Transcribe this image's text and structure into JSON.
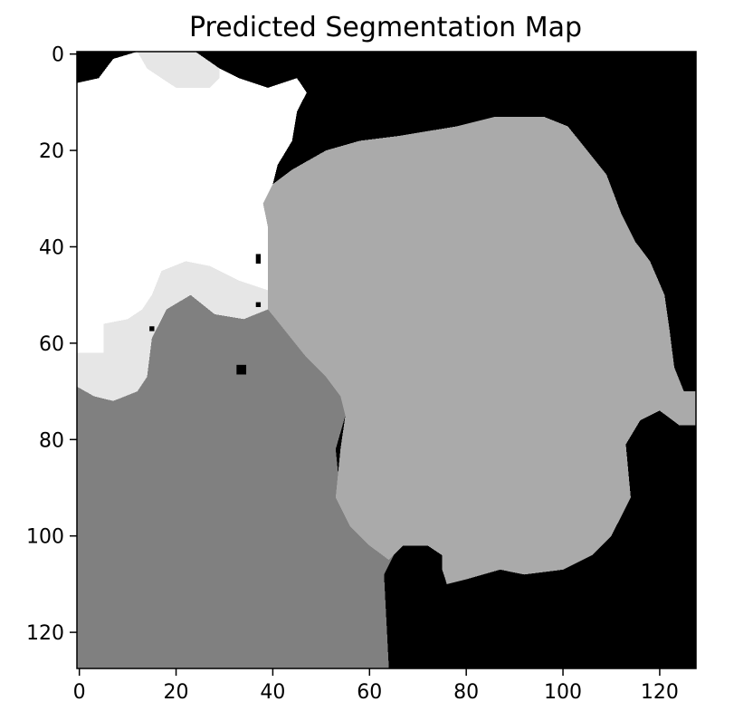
{
  "chart_data": {
    "type": "heatmap",
    "title": "Predicted Segmentation Map",
    "xlabel": "",
    "ylabel": "",
    "image_size": [
      128,
      128
    ],
    "xlim": [
      0,
      127
    ],
    "ylim": [
      127,
      0
    ],
    "x_ticks": [
      0,
      20,
      40,
      60,
      80,
      100,
      120
    ],
    "y_ticks": [
      0,
      20,
      40,
      60,
      80,
      100,
      120
    ],
    "colormap": "gray",
    "classes": [
      {
        "value": 0,
        "color": "#000000"
      },
      {
        "value": 1,
        "color": "#808080"
      },
      {
        "value": 2,
        "color": "#aaaaaa"
      },
      {
        "value": 3,
        "color": "#e6e6e6"
      },
      {
        "value": 4,
        "color": "#ffffff"
      }
    ],
    "regions": [
      {
        "class": 3,
        "polygon": [
          [
            12,
            0
          ],
          [
            24,
            0
          ],
          [
            29,
            3
          ],
          [
            29,
            5
          ],
          [
            27,
            7
          ],
          [
            20,
            7
          ],
          [
            17,
            5
          ],
          [
            14,
            3
          ],
          [
            12,
            0
          ],
          [
            17,
            45
          ],
          [
            22,
            43
          ],
          [
            27,
            44
          ],
          [
            33,
            47
          ],
          [
            39,
            49
          ],
          [
            39,
            53
          ],
          [
            34,
            55
          ],
          [
            28,
            54
          ],
          [
            23,
            50
          ],
          [
            18,
            53
          ],
          [
            15,
            59
          ],
          [
            14,
            67
          ],
          [
            12,
            70
          ],
          [
            7,
            72
          ],
          [
            3,
            71
          ],
          [
            0,
            69
          ],
          [
            0,
            62
          ],
          [
            5,
            62
          ],
          [
            5,
            56
          ],
          [
            10,
            55
          ],
          [
            13,
            53
          ],
          [
            15,
            50
          ]
        ]
      },
      {
        "class": 4,
        "polygon": [
          [
            0,
            6
          ],
          [
            4,
            5
          ],
          [
            7,
            1
          ],
          [
            12,
            0
          ],
          [
            14,
            3
          ],
          [
            17,
            5
          ],
          [
            20,
            7
          ],
          [
            27,
            7
          ],
          [
            29,
            5
          ],
          [
            29,
            3
          ],
          [
            33,
            5
          ],
          [
            39,
            7
          ],
          [
            45,
            5
          ],
          [
            47,
            8
          ],
          [
            45,
            12
          ],
          [
            44,
            18
          ],
          [
            41,
            23
          ],
          [
            40,
            27
          ],
          [
            38,
            31
          ],
          [
            39,
            36
          ],
          [
            39,
            42
          ],
          [
            39,
            46
          ],
          [
            39,
            49
          ],
          [
            33,
            47
          ],
          [
            27,
            44
          ],
          [
            22,
            43
          ],
          [
            17,
            45
          ],
          [
            15,
            50
          ],
          [
            13,
            53
          ],
          [
            10,
            55
          ],
          [
            5,
            56
          ],
          [
            5,
            62
          ],
          [
            0,
            62
          ]
        ]
      },
      {
        "class": 1,
        "polygon": [
          [
            0,
            69
          ],
          [
            3,
            71
          ],
          [
            7,
            72
          ],
          [
            12,
            70
          ],
          [
            14,
            67
          ],
          [
            15,
            59
          ],
          [
            18,
            53
          ],
          [
            23,
            50
          ],
          [
            28,
            54
          ],
          [
            34,
            55
          ],
          [
            39,
            53
          ],
          [
            43,
            58
          ],
          [
            47,
            63
          ],
          [
            51,
            67
          ],
          [
            54,
            71
          ],
          [
            55,
            75
          ],
          [
            53,
            82
          ],
          [
            54,
            92
          ],
          [
            57,
            98
          ],
          [
            62,
            102
          ],
          [
            65,
            104
          ],
          [
            63,
            108
          ],
          [
            64,
            127
          ],
          [
            0,
            127
          ]
        ]
      },
      {
        "class": 2,
        "polygon": [
          [
            40,
            27
          ],
          [
            44,
            24
          ],
          [
            51,
            20
          ],
          [
            58,
            18
          ],
          [
            66,
            17
          ],
          [
            72,
            16
          ],
          [
            78,
            15
          ],
          [
            86,
            13
          ],
          [
            96,
            13
          ],
          [
            101,
            15
          ],
          [
            105,
            20
          ],
          [
            109,
            25
          ],
          [
            112,
            33
          ],
          [
            115,
            39
          ],
          [
            118,
            43
          ],
          [
            121,
            50
          ],
          [
            122,
            57
          ],
          [
            123,
            65
          ],
          [
            125,
            70
          ],
          [
            127,
            70
          ],
          [
            127,
            77
          ],
          [
            124,
            77
          ],
          [
            120,
            74
          ],
          [
            116,
            76
          ],
          [
            113,
            81
          ],
          [
            114,
            92
          ],
          [
            112,
            96
          ],
          [
            110,
            100
          ],
          [
            106,
            104
          ],
          [
            100,
            107
          ],
          [
            92,
            108
          ],
          [
            87,
            107
          ],
          [
            80,
            109
          ],
          [
            76,
            110
          ],
          [
            75,
            107
          ],
          [
            75,
            104
          ],
          [
            72,
            102
          ],
          [
            67,
            102
          ],
          [
            64,
            105
          ],
          [
            60,
            102
          ],
          [
            56,
            98
          ],
          [
            53,
            92
          ],
          [
            54,
            82
          ],
          [
            55,
            75
          ],
          [
            54,
            71
          ],
          [
            51,
            67
          ],
          [
            47,
            63
          ],
          [
            43,
            58
          ],
          [
            39,
            53
          ],
          [
            39,
            49
          ],
          [
            39,
            46
          ],
          [
            39,
            42
          ],
          [
            39,
            36
          ],
          [
            38,
            31
          ]
        ]
      }
    ],
    "specks": [
      {
        "class": 0,
        "x": 33,
        "y": 65,
        "w": 2,
        "h": 2
      },
      {
        "class": 0,
        "x": 37,
        "y": 42,
        "w": 1,
        "h": 2
      },
      {
        "class": 0,
        "x": 37,
        "y": 52,
        "w": 1,
        "h": 1
      },
      {
        "class": 0,
        "x": 15,
        "y": 57,
        "w": 1,
        "h": 1
      }
    ]
  }
}
